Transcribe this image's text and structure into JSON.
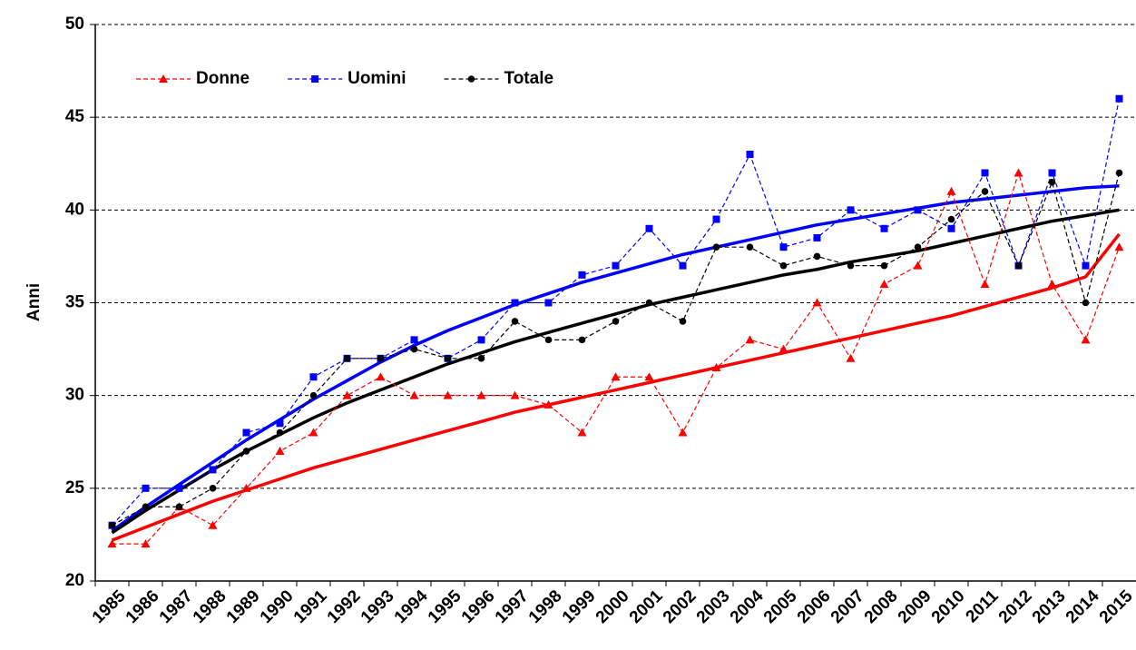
{
  "chart_data": {
    "type": "line",
    "y_label": "Anni",
    "categories": [
      "1985",
      "1986",
      "1987",
      "1988",
      "1989",
      "1990",
      "1991",
      "1992",
      "1993",
      "1994",
      "1995",
      "1996",
      "1997",
      "1998",
      "1999",
      "2000",
      "2001",
      "2002",
      "2003",
      "2004",
      "2005",
      "2006",
      "2007",
      "2008",
      "2009",
      "2010",
      "2011",
      "2012",
      "2013",
      "2014",
      "2015"
    ],
    "ylim": [
      20,
      50
    ],
    "yticks": [
      20,
      25,
      30,
      35,
      40,
      45,
      50
    ],
    "grid": true,
    "legend": "top-left",
    "series": [
      {
        "name": "Donne",
        "color": "#ff0000",
        "marker": "triangle",
        "values": [
          22,
          22,
          24,
          23,
          25,
          27,
          28,
          30,
          31,
          30,
          30,
          30,
          30,
          29.5,
          28,
          31,
          31,
          28,
          31.5,
          33,
          32.5,
          35,
          32,
          36,
          37,
          41,
          36,
          42,
          36,
          33,
          38
        ],
        "trend": [
          22.2,
          22.9,
          23.6,
          24.3,
          24.9,
          25.5,
          26.1,
          26.6,
          27.1,
          27.6,
          28.1,
          28.6,
          29.1,
          29.5,
          29.9,
          30.3,
          30.7,
          31.1,
          31.5,
          31.9,
          32.3,
          32.7,
          33.1,
          33.5,
          33.9,
          34.3,
          34.8,
          35.3,
          35.8,
          36.4,
          38.7
        ]
      },
      {
        "name": "Uomini",
        "color": "#0000ff",
        "marker": "square",
        "values": [
          23,
          25,
          25,
          26,
          28,
          28.5,
          31,
          32,
          32,
          33,
          32,
          33,
          35,
          35,
          36.5,
          37,
          39,
          37,
          39.5,
          43,
          38,
          38.5,
          40,
          39,
          40,
          39,
          42,
          37,
          42,
          37,
          46
        ],
        "trend": [
          22.7,
          24.0,
          25.2,
          26.4,
          27.6,
          28.7,
          29.8,
          30.8,
          31.8,
          32.7,
          33.5,
          34.2,
          34.9,
          35.5,
          36.1,
          36.6,
          37.1,
          37.6,
          38.0,
          38.4,
          38.8,
          39.2,
          39.5,
          39.8,
          40.1,
          40.4,
          40.6,
          40.8,
          41.0,
          41.2,
          41.3
        ]
      },
      {
        "name": "Totale",
        "color": "#000000",
        "marker": "circle",
        "values": [
          23,
          24,
          24,
          25,
          27,
          28,
          30,
          32,
          32,
          32.5,
          32,
          32,
          34,
          33,
          33,
          34,
          35,
          34,
          38,
          38,
          37,
          37.5,
          37,
          37,
          38,
          39.5,
          41,
          37,
          41.5,
          35,
          42
        ],
        "trend": [
          22.6,
          23.8,
          24.9,
          26.0,
          27.0,
          27.9,
          28.8,
          29.6,
          30.3,
          31.0,
          31.7,
          32.3,
          32.9,
          33.4,
          33.9,
          34.4,
          34.9,
          35.3,
          35.7,
          36.1,
          36.5,
          36.8,
          37.2,
          37.5,
          37.8,
          38.2,
          38.6,
          39.0,
          39.4,
          39.7,
          40.0
        ]
      }
    ]
  }
}
